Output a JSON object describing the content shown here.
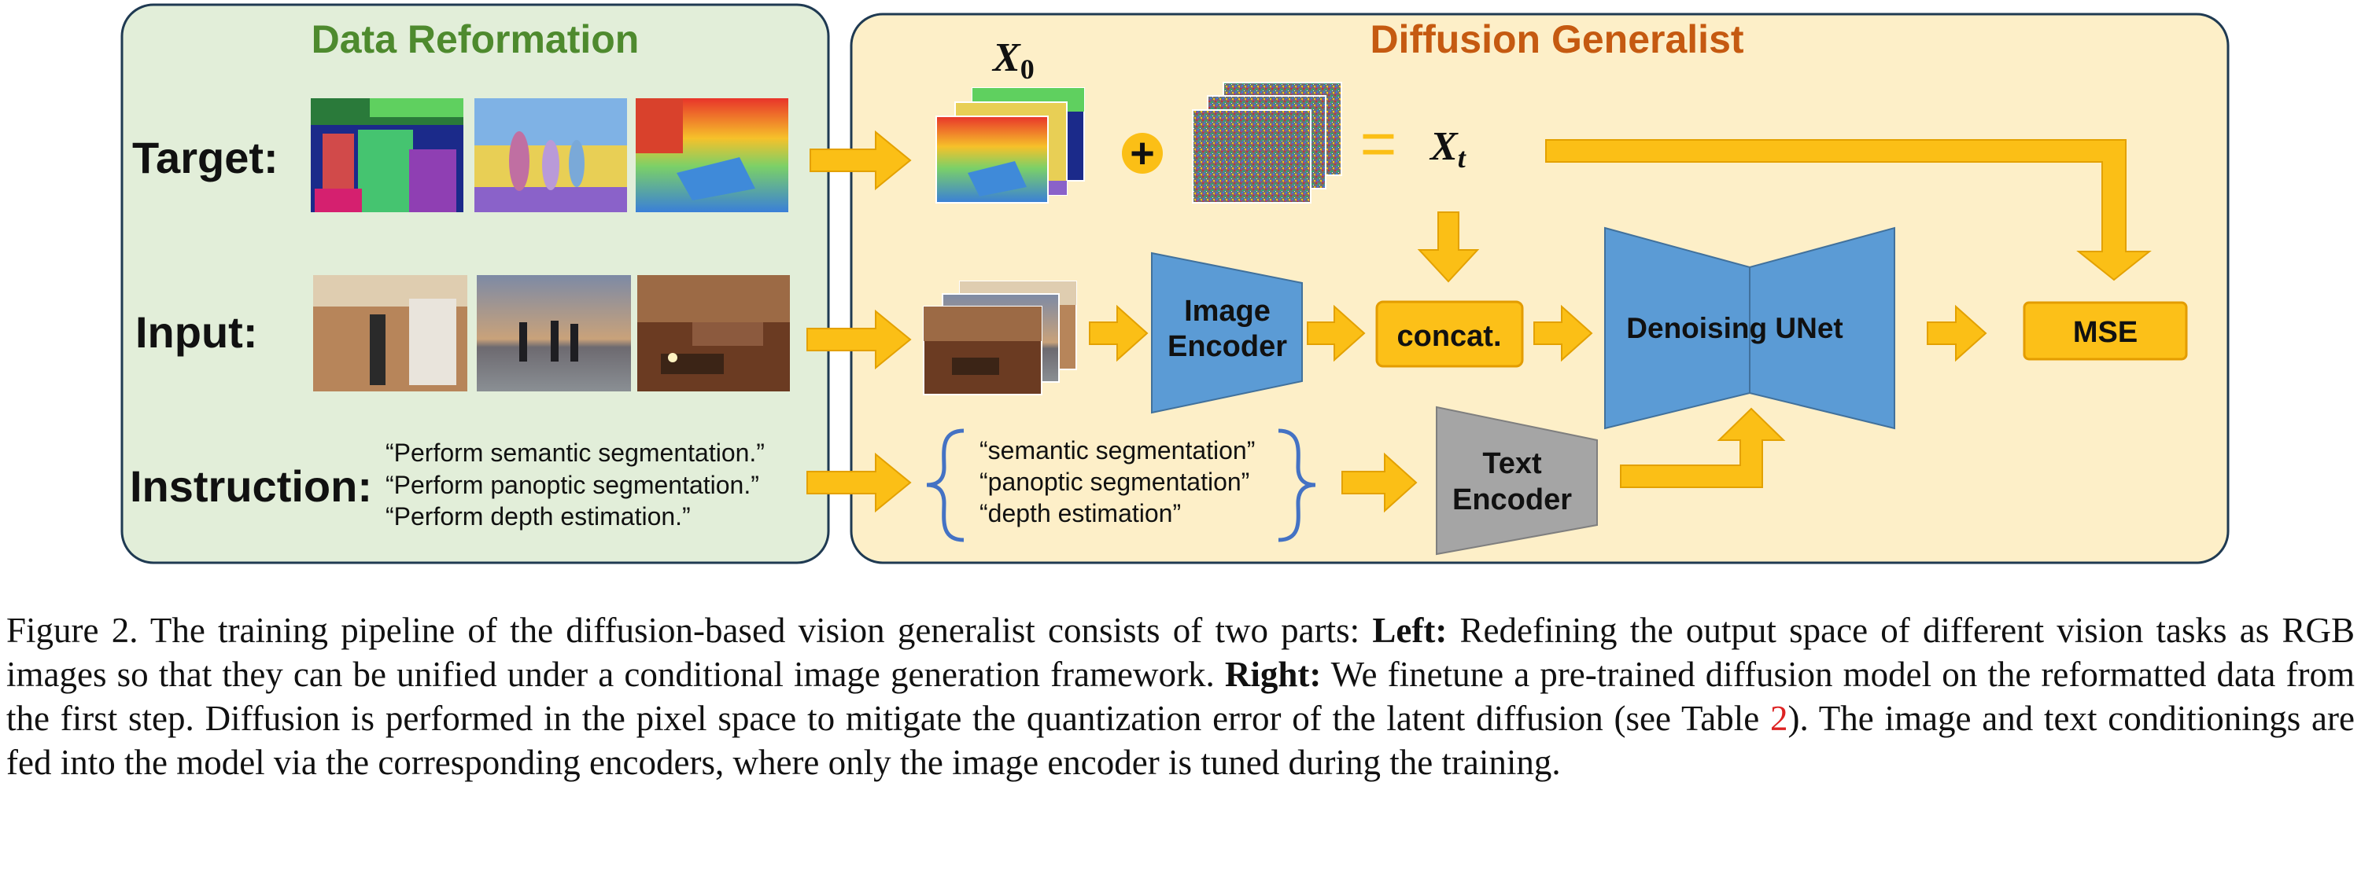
{
  "left_panel": {
    "title": "Data Reformation",
    "target_label": "Target:",
    "input_label": "Input:",
    "instruction_label": "Instruction:",
    "instructions": [
      "“Perform semantic segmentation.”",
      "“Perform panoptic segmentation.”",
      "“Perform depth estimation.”"
    ]
  },
  "right_panel": {
    "title": "Diffusion Generalist",
    "x0_label": "X",
    "x0_sub": "0",
    "xt_label": "X",
    "xt_sub": "t",
    "plus_symbol": "+",
    "equals_symbol": "=",
    "image_encoder": [
      "Image",
      "Encoder"
    ],
    "concat_label": "concat.",
    "unet_label": "Denoising UNet",
    "mse_label": "MSE",
    "text_encoder": [
      "Text",
      "Encoder"
    ],
    "task_prompts": [
      "“semantic segmentation”",
      "“panoptic segmentation”",
      "“depth estimation”"
    ]
  },
  "colors": {
    "left_bg": "#e2eed9",
    "right_bg": "#fdefc8",
    "left_title": "#4e8a2e",
    "right_title": "#c55a11",
    "arrow": "#fbbf16",
    "encoder_blue": "#5b9bd5",
    "text_encoder_gray": "#a5a5a5",
    "box_yellow": "#fcc018"
  },
  "caption": {
    "lead": "Figure 2. The training pipeline of the diffusion-based vision generalist consists of two parts: ",
    "left_bold": "Left:",
    "left_text": " Redefining the output space of different vision tasks as RGB images so that they can be unified under a conditional image generation framework. ",
    "right_bold": "Right:",
    "right_text_a": " We finetune a pre-trained diffusion model on the reformatted data from the first step. Diffusion is performed in the pixel space to mitigate the quantization error of the latent diffusion (see Table ",
    "table_ref": "2",
    "right_text_b": "). The image and text conditionings are fed into the model via the corresponding encoders, where only the image encoder is tuned during the training."
  }
}
